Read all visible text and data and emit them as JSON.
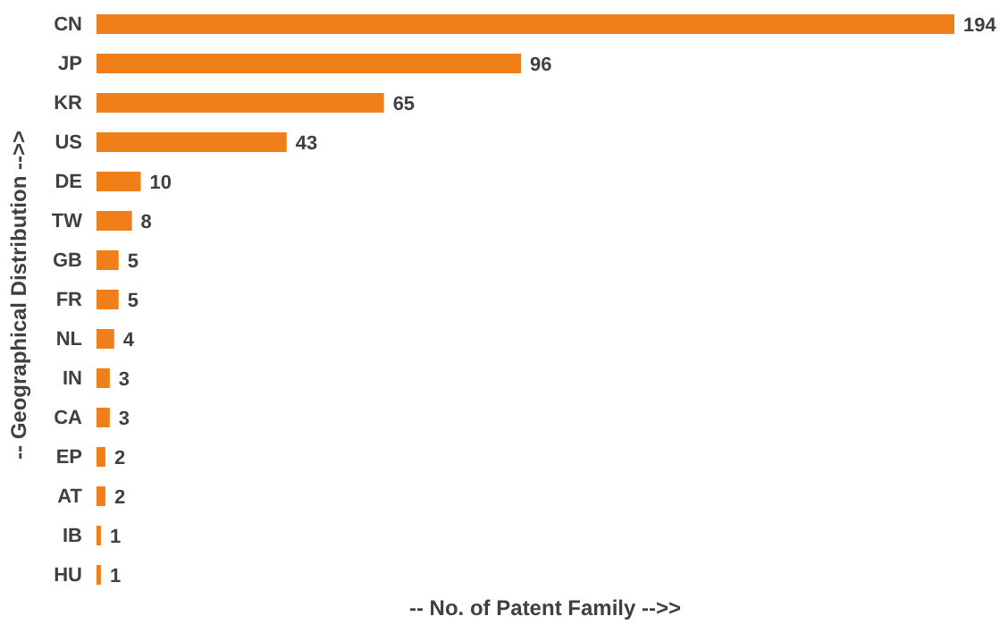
{
  "chart_data": {
    "type": "bar",
    "orientation": "horizontal",
    "xlabel": "-- No. of Patent Family -->>",
    "ylabel": "-- Geographical Distribution -->>",
    "categories": [
      "CN",
      "JP",
      "KR",
      "US",
      "DE",
      "TW",
      "GB",
      "FR",
      "NL",
      "IN",
      "CA",
      "EP",
      "AT",
      "IB",
      "HU"
    ],
    "values": [
      194,
      96,
      65,
      43,
      10,
      8,
      5,
      5,
      4,
      3,
      3,
      2,
      2,
      1,
      1
    ],
    "color": "#f07f1a",
    "data_labels": true,
    "grid": false,
    "legend": false
  }
}
